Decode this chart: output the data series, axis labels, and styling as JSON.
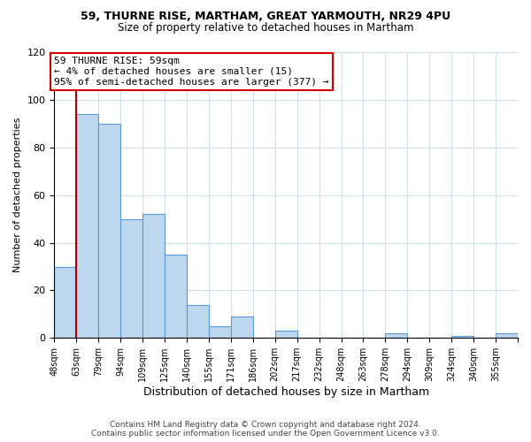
{
  "title1": "59, THURNE RISE, MARTHAM, GREAT YARMOUTH, NR29 4PU",
  "title2": "Size of property relative to detached houses in Martham",
  "xlabel": "Distribution of detached houses by size in Martham",
  "ylabel": "Number of detached properties",
  "bin_labels": [
    "48sqm",
    "63sqm",
    "79sqm",
    "94sqm",
    "109sqm",
    "125sqm",
    "140sqm",
    "155sqm",
    "171sqm",
    "186sqm",
    "202sqm",
    "217sqm",
    "232sqm",
    "248sqm",
    "263sqm",
    "278sqm",
    "294sqm",
    "309sqm",
    "324sqm",
    "340sqm",
    "355sqm"
  ],
  "bar_heights": [
    30,
    94,
    90,
    50,
    52,
    35,
    14,
    5,
    9,
    0,
    3,
    0,
    0,
    0,
    0,
    2,
    0,
    0,
    1,
    0,
    2
  ],
  "bar_color": "#bdd7ee",
  "bar_edge_color": "#5b9bd5",
  "property_line_x": 1.0,
  "annotation_box": {
    "text_line1": "59 THURNE RISE: 59sqm",
    "text_line2": "← 4% of detached houses are smaller (15)",
    "text_line3": "95% of semi-detached houses are larger (377) →",
    "box_color": "#ffffff",
    "border_color": "#cc0000"
  },
  "footer_line1": "Contains HM Land Registry data © Crown copyright and database right 2024.",
  "footer_line2": "Contains public sector information licensed under the Open Government Licence v3.0.",
  "ylim": [
    0,
    120
  ],
  "yticks": [
    0,
    20,
    40,
    60,
    80,
    100,
    120
  ],
  "background_color": "#ffffff",
  "grid_color": "#ccddf0"
}
